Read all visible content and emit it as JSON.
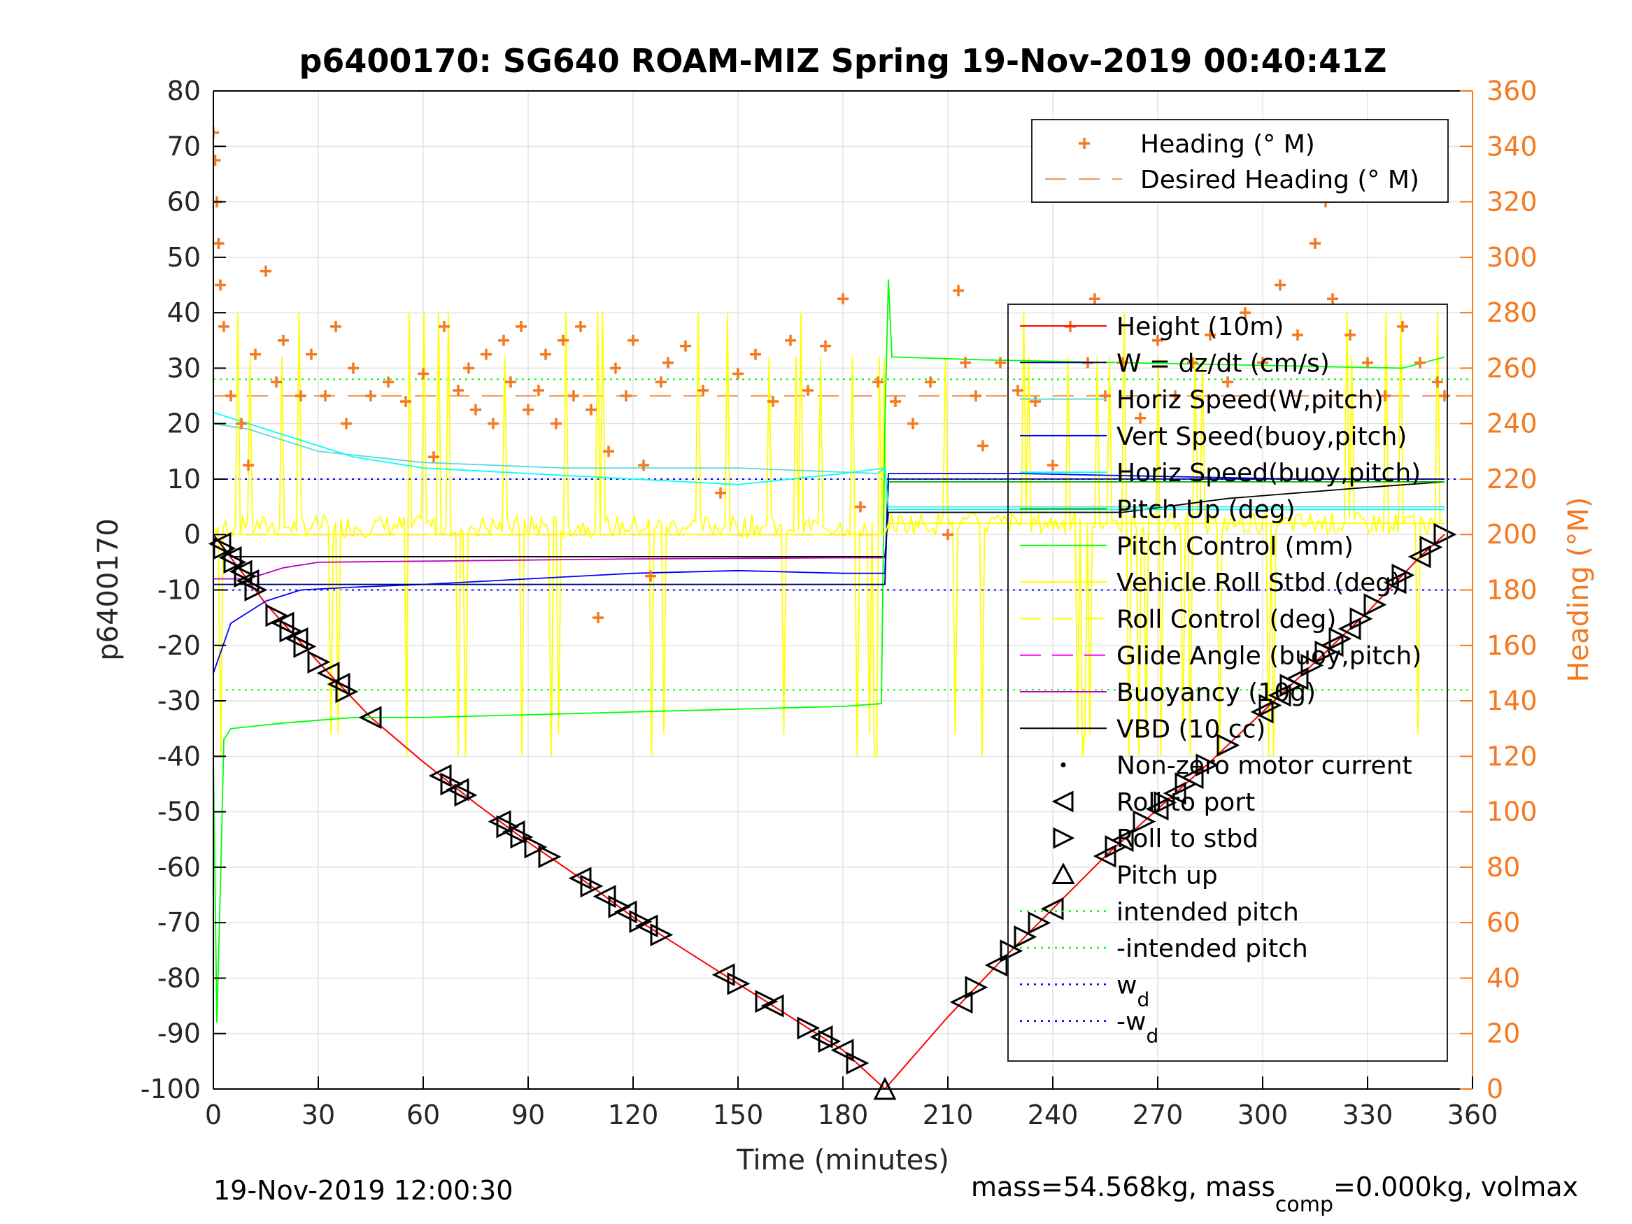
{
  "chart_data": {
    "type": "line",
    "title": "p6400170: SG640 ROAM-MIZ Spring 19-Nov-2019 00:40:41Z",
    "xlabel": "Time (minutes)",
    "ylabel": "p6400170",
    "y2label": "Heading (°M)",
    "xlim": [
      0,
      360
    ],
    "ylim": [
      -100,
      80
    ],
    "y2lim": [
      0,
      360
    ],
    "xticks": [
      0,
      30,
      60,
      90,
      120,
      150,
      180,
      210,
      240,
      270,
      300,
      330,
      360
    ],
    "yticks": [
      -100,
      -90,
      -80,
      -70,
      -60,
      -50,
      -40,
      -30,
      -20,
      -10,
      0,
      10,
      20,
      30,
      40,
      50,
      60,
      70,
      80
    ],
    "y2ticks": [
      0,
      20,
      40,
      60,
      80,
      100,
      120,
      140,
      160,
      180,
      200,
      220,
      240,
      260,
      280,
      300,
      320,
      340,
      360
    ],
    "grid": true,
    "footer_left": "19-Nov-2019 12:00:30",
    "footer_right_main": "mass=54.568kg, mass",
    "footer_right_sub": "comp",
    "footer_right_tail": "=0.000kg, volmax",
    "legend_top": [
      {
        "name": "Heading (° M)",
        "color": "#f47920",
        "marker": "plus"
      },
      {
        "name": "Desired Heading (° M)",
        "color": "#f47920",
        "dash": "long"
      }
    ],
    "legend_main": [
      {
        "name": "Height (10m)",
        "color": "#ff0000",
        "style": "solid"
      },
      {
        "name": "W = dz/dt (cm/s)",
        "color": "#000080",
        "style": "solid"
      },
      {
        "name": "Horiz Speed(W,pitch)",
        "color": "#5ed8d8",
        "style": "solid"
      },
      {
        "name": "Vert Speed(buoy,pitch)",
        "color": "#0000ff",
        "style": "solid"
      },
      {
        "name": "Horiz Speed(buoy,pitch)",
        "color": "#00ffff",
        "style": "solid"
      },
      {
        "name": "Pitch Up (deg)",
        "color": "#00b000",
        "style": "solid"
      },
      {
        "name": "Pitch Control (mm)",
        "color": "#00ff00",
        "style": "solid"
      },
      {
        "name": "Vehicle Roll Stbd (deg)",
        "color": "#ffff00",
        "style": "solid"
      },
      {
        "name": "Roll Control (deg)",
        "color": "#ffff00",
        "style": "dash"
      },
      {
        "name": "Glide Angle (buoy,pitch)",
        "color": "#ff00ff",
        "style": "dash"
      },
      {
        "name": "Buoyancy (10g)",
        "color": "#c000c0",
        "style": "solid"
      },
      {
        "name": "VBD (10 cc)",
        "color": "#000000",
        "style": "solid"
      },
      {
        "name": "Non-zero motor current",
        "color": "#000000",
        "style": "dot-marker"
      },
      {
        "name": "Roll to port",
        "color": "#000000",
        "style": "tri-left"
      },
      {
        "name": "Roll to stbd",
        "color": "#000000",
        "style": "tri-right"
      },
      {
        "name": "Pitch up",
        "color": "#000000",
        "style": "tri-up"
      },
      {
        "name": "intended pitch",
        "color": "#00ff00",
        "style": "dotted"
      },
      {
        "name": "-intended pitch",
        "color": "#00ff00",
        "style": "dotted"
      },
      {
        "name": "w",
        "sub": "d",
        "color": "#0000ff",
        "style": "dotted"
      },
      {
        "name": "-w",
        "sub": "d",
        "color": "#0000ff",
        "style": "dotted"
      }
    ],
    "series": [
      {
        "name": "Height (10m)",
        "color": "#ff0000",
        "axis": "left",
        "x": [
          0,
          15,
          30,
          45,
          60,
          75,
          90,
          105,
          120,
          135,
          150,
          165,
          180,
          192,
          210,
          225,
          240,
          255,
          270,
          285,
          300,
          315,
          330,
          345,
          352
        ],
        "values": [
          0,
          -12.5,
          -23,
          -33,
          -41,
          -48.5,
          -55.5,
          -62,
          -69,
          -75,
          -81,
          -87,
          -93,
          -100,
          -87,
          -77,
          -67.5,
          -58,
          -49.5,
          -41,
          -32,
          -23,
          -14,
          -4,
          0
        ]
      },
      {
        "name": "VBD (10 cc)",
        "color": "#000000",
        "axis": "left",
        "x": [
          0,
          5,
          192,
          192.5,
          193,
          260,
          290,
          330,
          352
        ],
        "values": [
          0,
          -4,
          -4,
          0,
          4,
          4,
          6.5,
          8.5,
          9.5
        ]
      },
      {
        "name": "Buoyancy (10g)",
        "color": "#c000c0",
        "axis": "left",
        "x": [
          0,
          10,
          20,
          30,
          60,
          90,
          120,
          150,
          180,
          192
        ],
        "values": [
          -8,
          -8,
          -6,
          -5,
          -4.8,
          -4.6,
          -4.4,
          -4.3,
          -4.2,
          -4.2
        ]
      },
      {
        "name": "Glide Angle (buoy,pitch)",
        "color": "#ff00ff",
        "axis": "left",
        "x": [
          0,
          192
        ],
        "values": [
          0,
          0
        ]
      },
      {
        "name": "Pitch Up (deg)",
        "color": "#00b000",
        "axis": "left",
        "x": [
          0,
          192,
          193,
          352
        ],
        "values": [
          -9,
          -9,
          9.5,
          9.5
        ]
      },
      {
        "name": "Pitch Control (mm)",
        "color": "#00ff00",
        "axis": "left",
        "x": [
          0,
          1,
          2,
          3,
          5,
          20,
          40,
          60,
          90,
          120,
          150,
          180,
          191,
          192,
          193,
          194,
          195,
          220,
          260,
          300,
          340,
          352
        ],
        "values": [
          -40,
          -88,
          -64,
          -37,
          -35,
          -34,
          -33,
          -33,
          -32.5,
          -32,
          -31.5,
          -31,
          -30.5,
          20,
          46,
          32,
          32,
          31.5,
          31,
          30.5,
          30,
          32
        ]
      },
      {
        "name": "Vert Speed(buoy,pitch)",
        "color": "#0000ff",
        "axis": "left",
        "x": [
          0,
          5,
          15,
          25,
          40,
          60,
          90,
          120,
          150,
          180,
          192,
          193,
          230,
          270,
          310,
          352
        ],
        "values": [
          -25,
          -16,
          -12,
          -10,
          -9.5,
          -9,
          -8,
          -7,
          -6.5,
          -7,
          -7,
          11,
          11,
          10.5,
          10,
          10
        ]
      },
      {
        "name": "W = dz/dt (cm/s)",
        "color": "#000080",
        "axis": "left",
        "x": [
          0,
          192,
          193,
          352
        ],
        "values": [
          -9,
          -9,
          10,
          10
        ]
      },
      {
        "name": "Horiz Speed(W,pitch)",
        "color": "#5ed8d8",
        "axis": "left",
        "x": [
          0,
          10,
          30,
          60,
          100,
          150,
          190,
          192,
          193,
          352
        ],
        "values": [
          20,
          19,
          15,
          13,
          12,
          12,
          11,
          12,
          5,
          5
        ]
      },
      {
        "name": "Horiz Speed(buoy,pitch)",
        "color": "#00ffff",
        "axis": "left",
        "x": [
          0,
          5,
          20,
          40,
          60,
          90,
          120,
          150,
          180,
          192,
          193,
          352
        ],
        "values": [
          22,
          21,
          18,
          14,
          12,
          11,
          10,
          9,
          11,
          12,
          4.5,
          4.5
        ]
      },
      {
        "name": "Roll Control (deg)",
        "color": "#ffff00",
        "axis": "left",
        "x": [
          0,
          192,
          193,
          352
        ],
        "values": [
          0,
          0,
          2,
          2
        ]
      }
    ],
    "reference_lines": [
      {
        "name": "intended pitch",
        "y": 28,
        "color": "#00ff00"
      },
      {
        "name": "-intended pitch",
        "y": -28,
        "color": "#00ff00"
      },
      {
        "name": "w_d",
        "y": 10,
        "color": "#0000ff"
      },
      {
        "name": "-w_d",
        "y": -10,
        "color": "#0000ff"
      }
    ],
    "desired_heading": {
      "y2": 250,
      "color": "#f47920"
    },
    "heading_points": {
      "x": [
        0,
        0.5,
        1,
        1.5,
        2,
        3,
        5,
        8,
        10,
        12,
        15,
        18,
        20,
        25,
        28,
        32,
        35,
        38,
        40,
        45,
        50,
        55,
        60,
        63,
        66,
        70,
        73,
        75,
        78,
        80,
        83,
        85,
        88,
        90,
        93,
        95,
        98,
        100,
        103,
        105,
        108,
        110,
        113,
        115,
        118,
        120,
        123,
        125,
        128,
        130,
        135,
        140,
        145,
        150,
        155,
        160,
        165,
        170,
        175,
        180,
        185,
        190,
        195,
        200,
        205,
        210,
        213,
        215,
        218,
        220,
        225,
        230,
        235,
        240,
        245,
        250,
        252,
        255,
        260,
        265,
        270,
        275,
        280,
        285,
        290,
        295,
        300,
        305,
        310,
        315,
        318,
        320,
        325,
        330,
        335,
        340,
        345,
        350,
        352
      ],
      "y2": [
        345,
        335,
        320,
        305,
        290,
        275,
        250,
        240,
        225,
        265,
        295,
        255,
        270,
        250,
        265,
        250,
        275,
        240,
        260,
        250,
        255,
        248,
        258,
        228,
        275,
        252,
        260,
        245,
        265,
        240,
        270,
        255,
        275,
        245,
        252,
        265,
        240,
        270,
        250,
        275,
        245,
        170,
        230,
        260,
        250,
        270,
        225,
        185,
        255,
        262,
        268,
        252,
        215,
        258,
        265,
        248,
        270,
        252,
        268,
        285,
        210,
        255,
        248,
        240,
        255,
        200,
        288,
        262,
        250,
        232,
        262,
        252,
        248,
        225,
        275,
        262,
        285,
        250,
        262,
        242,
        270,
        250,
        262,
        272,
        255,
        280,
        262,
        290,
        272,
        305,
        320,
        285,
        272,
        262,
        250,
        275,
        262,
        255,
        250
      ]
    },
    "marker_points": {
      "roll_to_port_x": [
        2,
        5,
        8,
        10,
        20,
        24,
        33,
        36,
        45,
        65,
        70,
        82,
        86,
        105,
        112,
        118,
        124,
        146,
        160,
        174,
        180,
        214,
        224,
        240,
        255,
        260,
        270,
        275,
        280,
        300,
        305,
        310,
        320,
        325,
        338,
        345
      ],
      "roll_to_stbd_x": [
        3,
        6,
        9,
        12,
        18,
        22,
        26,
        30,
        38,
        68,
        72,
        84,
        88,
        92,
        96,
        108,
        116,
        122,
        128,
        150,
        158,
        170,
        176,
        184,
        218,
        228,
        232,
        236,
        258,
        266,
        272,
        278,
        284,
        290,
        302,
        308,
        314,
        318,
        322,
        328,
        332,
        340,
        348,
        352
      ],
      "pitch_up_x": [
        192
      ]
    }
  }
}
